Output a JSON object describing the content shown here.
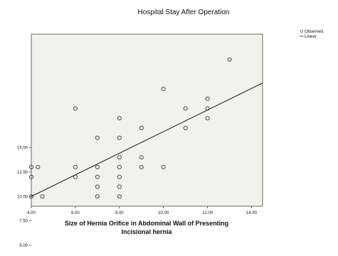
{
  "chart_data": {
    "type": "scatter",
    "title": "Hospital Stay After Operation",
    "xlabel_lines": [
      "Size of Hernia Orifice in Abdominal Wall of Presenting",
      "Incisional hernia"
    ],
    "ylabel": "",
    "xlim": [
      4.0,
      14.5
    ],
    "ylim": [
      4.5,
      13.3
    ],
    "x_ticks": [
      "4.00",
      "6.00",
      "8.00",
      "10.00",
      "12.00",
      "14.00"
    ],
    "y_ticks": [
      "5.00",
      "7.50",
      "10.00",
      "12.50",
      "15.00"
    ],
    "x_tick_values": [
      4,
      6,
      8,
      10,
      12,
      14
    ],
    "y_tick_values": [
      5,
      7.5,
      10,
      12.5,
      15
    ],
    "legend": [
      "Observed",
      "Linear"
    ],
    "series": [
      {
        "marker": "circle",
        "points": [
          [
            4.0,
            5.0
          ],
          [
            4.0,
            6.0
          ],
          [
            4.0,
            6.5
          ],
          [
            4.3,
            6.5
          ],
          [
            4.5,
            5.0
          ],
          [
            6.0,
            6.0
          ],
          [
            6.0,
            6.5
          ],
          [
            6.0,
            9.5
          ],
          [
            7.0,
            5.0
          ],
          [
            7.0,
            5.5
          ],
          [
            7.0,
            6.0
          ],
          [
            7.0,
            6.5
          ],
          [
            7.0,
            8.0
          ],
          [
            8.0,
            5.0
          ],
          [
            8.0,
            5.5
          ],
          [
            8.0,
            6.0
          ],
          [
            8.0,
            6.5
          ],
          [
            8.0,
            7.0
          ],
          [
            8.0,
            8.0
          ],
          [
            8.0,
            9.0
          ],
          [
            9.0,
            6.5
          ],
          [
            9.0,
            7.0
          ],
          [
            9.0,
            8.5
          ],
          [
            10.0,
            6.5
          ],
          [
            10.0,
            10.5
          ],
          [
            11.0,
            8.5
          ],
          [
            11.0,
            9.5
          ],
          [
            12.0,
            9.5
          ],
          [
            12.0,
            9.0
          ],
          [
            12.0,
            10.0
          ],
          [
            13.0,
            12.0
          ]
        ]
      }
    ],
    "fit_line": {
      "x": [
        4.0,
        14.5
      ],
      "y": [
        5.0,
        10.8
      ]
    },
    "grid": false,
    "legend_position": "top-right outside plot"
  }
}
